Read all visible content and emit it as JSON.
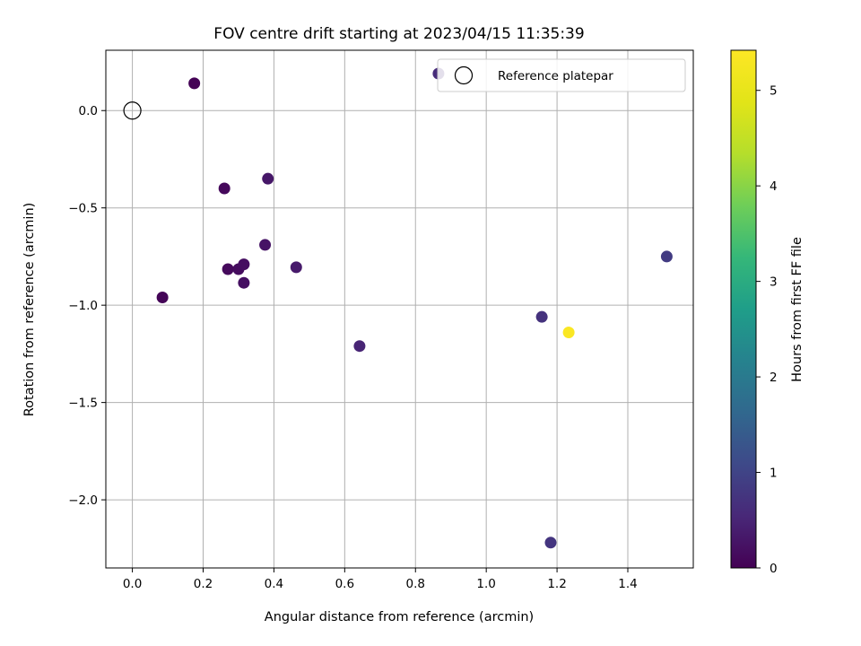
{
  "chart_data": {
    "type": "scatter",
    "title": "FOV centre drift starting at 2023/04/15 11:35:39",
    "xlabel": "Angular distance from reference (arcmin)",
    "ylabel": "Rotation from reference (arcmin)",
    "xlim": [
      -0.075,
      1.585
    ],
    "ylim": [
      -2.35,
      0.31
    ],
    "xticks": [
      0.0,
      0.2,
      0.4,
      0.6,
      0.8,
      1.0,
      1.2,
      1.4
    ],
    "xtick_labels": [
      "0.0",
      "0.2",
      "0.4",
      "0.6",
      "0.8",
      "1.0",
      "1.2",
      "1.4"
    ],
    "yticks": [
      -2.0,
      -1.5,
      -1.0,
      -0.5,
      0.0
    ],
    "ytick_labels": [
      "−2.0",
      "−1.5",
      "−1.0",
      "−0.5",
      "0.0"
    ],
    "grid": true,
    "legend": {
      "placement": "top-right",
      "entries": [
        "Reference platepar"
      ]
    },
    "reference_point": {
      "x": 0.0,
      "y": 0.0,
      "label": "Reference platepar"
    },
    "colorbar": {
      "label": "Hours from first FF file",
      "colormap": "viridis",
      "range": [
        0,
        5.42
      ],
      "ticks": [
        0,
        1,
        2,
        3,
        4,
        5
      ],
      "tick_labels": [
        "0",
        "1",
        "2",
        "3",
        "4",
        "5"
      ]
    },
    "points": [
      {
        "x": 0.175,
        "y": 0.14,
        "hours": 0.02
      },
      {
        "x": 0.085,
        "y": -0.96,
        "hours": 0.05
      },
      {
        "x": 0.26,
        "y": -0.4,
        "hours": 0.1
      },
      {
        "x": 0.27,
        "y": -0.815,
        "hours": 0.12
      },
      {
        "x": 0.3,
        "y": -0.815,
        "hours": 0.15
      },
      {
        "x": 0.315,
        "y": -0.79,
        "hours": 0.18
      },
      {
        "x": 0.315,
        "y": -0.885,
        "hours": 0.2
      },
      {
        "x": 0.375,
        "y": -0.69,
        "hours": 0.25
      },
      {
        "x": 0.383,
        "y": -0.35,
        "hours": 0.3
      },
      {
        "x": 0.463,
        "y": -0.805,
        "hours": 0.35
      },
      {
        "x": 0.642,
        "y": -1.21,
        "hours": 0.5
      },
      {
        "x": 0.865,
        "y": 0.19,
        "hours": 0.6
      },
      {
        "x": 1.157,
        "y": -1.06,
        "hours": 0.7
      },
      {
        "x": 1.182,
        "y": -2.22,
        "hours": 0.75
      },
      {
        "x": 1.51,
        "y": -0.75,
        "hours": 0.85
      },
      {
        "x": 1.233,
        "y": -1.14,
        "hours": 5.35
      }
    ]
  }
}
